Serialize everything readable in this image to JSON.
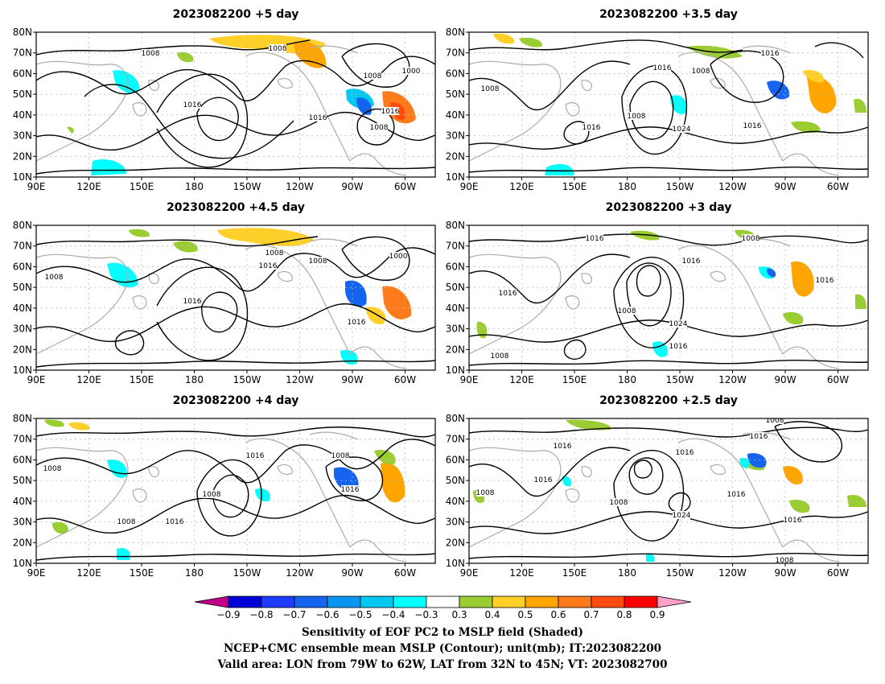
{
  "panels": [
    {
      "title": "2023082200  +5 day",
      "labels": [
        "1008",
        "1008",
        "1008",
        "1000",
        "1016",
        "1016",
        "1016",
        "1008"
      ]
    },
    {
      "title": "2023082200  +3.5 day",
      "labels": [
        "1008",
        "1016",
        "1016",
        "1008",
        "1008",
        "1024",
        "1016",
        "1016"
      ]
    },
    {
      "title": "2023082200  +4.5 day",
      "labels": [
        "1008",
        "1008",
        "1008",
        "1000",
        "1016",
        "1016",
        "1016"
      ]
    },
    {
      "title": "2023082200  +3 day",
      "labels": [
        "1016",
        "1008",
        "1016",
        "1016",
        "1008",
        "1024",
        "1016",
        "1016",
        "1008"
      ]
    },
    {
      "title": "2023082200  +4 day",
      "labels": [
        "1008",
        "1016",
        "1008",
        "1008",
        "1016",
        "1008",
        "1016"
      ]
    },
    {
      "title": "2023082200  +2.5 day",
      "labels": [
        "1008",
        "1016",
        "1016",
        "1016",
        "1008",
        "1024",
        "1016",
        "1016",
        "1008",
        "1016",
        "1008"
      ]
    }
  ],
  "axes": {
    "lat_labels": [
      "80N",
      "70N",
      "60N",
      "50N",
      "40N",
      "30N",
      "20N",
      "10N"
    ],
    "lon_labels": [
      "90E",
      "120E",
      "150E",
      "180",
      "150W",
      "120W",
      "90W",
      "60W"
    ]
  },
  "colorbar": {
    "ticks": [
      "−0.9",
      "−0.8",
      "−0.7",
      "−0.6",
      "−0.5",
      "−0.4",
      "−0.3",
      "0.3",
      "0.4",
      "0.5",
      "0.6",
      "0.7",
      "0.8",
      "0.9"
    ],
    "colors": [
      "#0000a0",
      "#0000d8",
      "#1e3cff",
      "#1464f0",
      "#0a96f0",
      "#00c8f0",
      "#00ffff",
      "#ffffff",
      "#9acd32",
      "#ffd02a",
      "#ffa500",
      "#ff7a1a",
      "#ff4a10",
      "#ff0000"
    ],
    "low_extend_color": "#c0008a",
    "high_extend_color": "#ffa0c8"
  },
  "caption": {
    "line1": "Sensitivity of EOF PC2 to MSLP field (Shaded)",
    "line2": "NCEP+CMC ensemble mean MSLP (Contour); unit(mb); IT:2023082200",
    "line3": "Valid area: LON from 79W to 62W, LAT from 32N to 45N; VT: 2023082700"
  }
}
